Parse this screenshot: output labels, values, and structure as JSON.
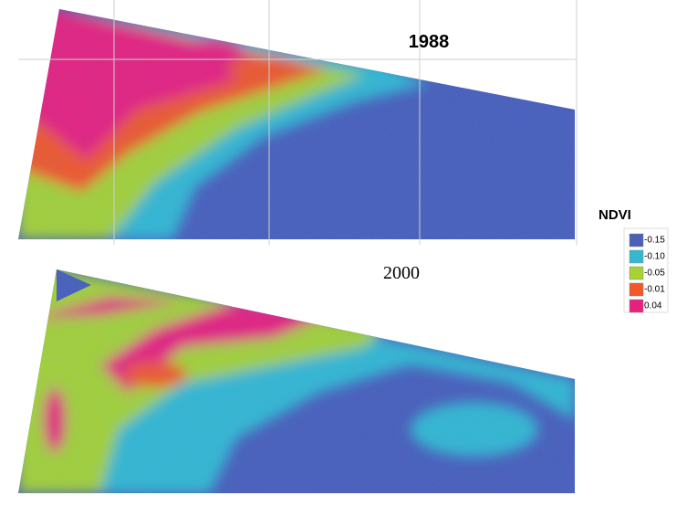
{
  "panels": [
    {
      "label": "1988"
    },
    {
      "label": "2000"
    }
  ],
  "legend": {
    "title": "NDVI",
    "items": [
      {
        "label": "-0.15",
        "color": "#4b5fb8"
      },
      {
        "label": "-0.10",
        "color": "#35b8cf"
      },
      {
        "label": "-0.05",
        "color": "#a6d234"
      },
      {
        "label": "-0.01",
        "color": "#f2582a"
      },
      {
        "label": "0.04",
        "color": "#e8207d"
      }
    ]
  }
}
